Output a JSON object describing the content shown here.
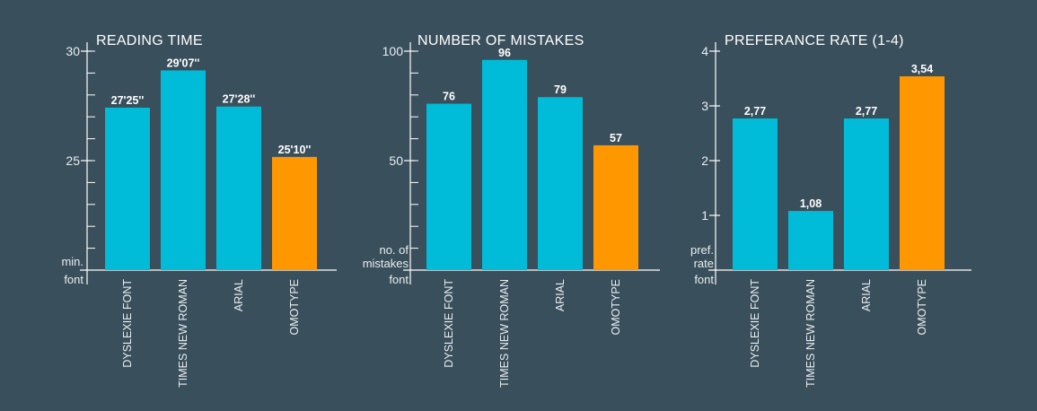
{
  "colors": {
    "background": "#3a4f5c",
    "bar_default": "#00bcd8",
    "bar_highlight": "#ff9800",
    "axis": "#ffffff"
  },
  "chart_data": [
    {
      "type": "bar",
      "title": "READING TIME",
      "categories": [
        "DYSLEXIE FONT",
        "TIMES NEW ROMAN",
        "ARIAL",
        "OMOTYPE"
      ],
      "values": [
        27.42,
        29.12,
        27.47,
        25.17
      ],
      "data_labels": [
        "27'25''",
        "29'07''",
        "27'28''",
        "25'10''"
      ],
      "highlight": [
        false,
        false,
        false,
        true
      ],
      "ylim": [
        20,
        30
      ],
      "yticks": [
        25,
        30
      ],
      "ytick_labels": [
        "25",
        "30"
      ],
      "minor_tick_step": 1,
      "ylabel": "min.",
      "xlabel": "font",
      "grid": false
    },
    {
      "type": "bar",
      "title": "NUMBER OF MISTAKES",
      "categories": [
        "DYSLEXIE FONT",
        "TIMES NEW ROMAN",
        "ARIAL",
        "OMOTYPE"
      ],
      "values": [
        76,
        96,
        79,
        57
      ],
      "data_labels": [
        "76",
        "96",
        "79",
        "57"
      ],
      "highlight": [
        false,
        false,
        false,
        true
      ],
      "ylim": [
        0,
        100
      ],
      "yticks": [
        50,
        100
      ],
      "ytick_labels": [
        "50",
        "100"
      ],
      "minor_tick_step": 10,
      "ylabel": "no. of mistakes",
      "xlabel": "font",
      "grid": false
    },
    {
      "type": "bar",
      "title": "PREFERANCE RATE (1-4)",
      "categories": [
        "DYSLEXIE FONT",
        "TIMES NEW ROMAN",
        "ARIAL",
        "OMOTYPE"
      ],
      "values": [
        2.77,
        1.08,
        2.77,
        3.54
      ],
      "data_labels": [
        "2,77",
        "1,08",
        "2,77",
        "3,54"
      ],
      "highlight": [
        false,
        false,
        false,
        true
      ],
      "ylim": [
        0,
        4
      ],
      "yticks": [
        1,
        2,
        3,
        4
      ],
      "ytick_labels": [
        "1",
        "2",
        "3",
        "4"
      ],
      "minor_tick_step": 0,
      "ylabel": "pref. rate",
      "xlabel": "font",
      "grid": false
    }
  ]
}
